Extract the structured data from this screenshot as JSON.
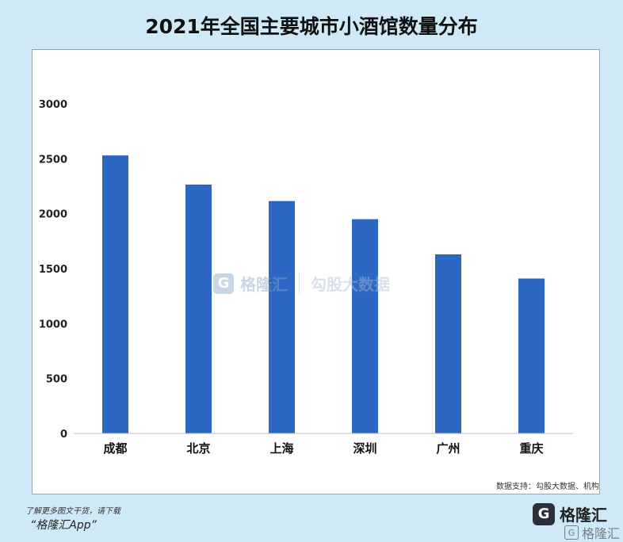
{
  "chart_data": {
    "type": "bar",
    "title": "2021年全国主要城市小酒馆数量分布",
    "categories": [
      "成都",
      "北京",
      "上海",
      "深圳",
      "广州",
      "重庆"
    ],
    "values": [
      2530,
      2265,
      2115,
      1950,
      1630,
      1410
    ],
    "yticks": [
      0,
      500,
      1000,
      1500,
      2000,
      2500,
      3000
    ],
    "ylim": [
      0,
      3000
    ],
    "xlabel": "",
    "ylabel": "",
    "grid": false,
    "bar_color": "#2b67c3"
  },
  "source": "数据支持：勾股大数据、机构",
  "watermark": {
    "logo": "G",
    "brand": "格隆汇",
    "partner": "勾股大数据"
  },
  "footer": {
    "note": "了解更多图文干货，请下载",
    "app": "“格隆汇App”",
    "brand_logo": "G",
    "brand_name": "格隆汇",
    "corner_logo": "G",
    "corner_name": "格隆汇"
  }
}
